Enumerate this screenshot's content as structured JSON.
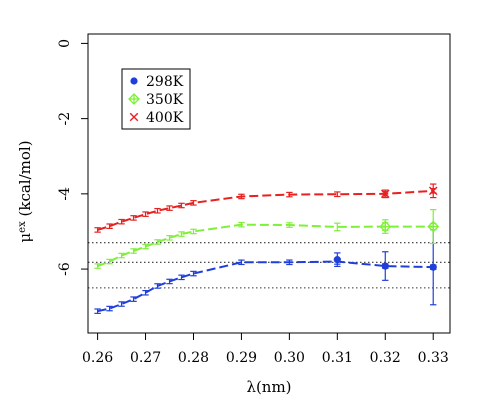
{
  "chart_data": {
    "type": "line",
    "xlabel": "λ(nm)",
    "ylabel": {
      "main": "μ",
      "superscript": "ex",
      "unit": " (kcal/mol)"
    },
    "xlim": [
      0.258,
      0.3335
    ],
    "ylim": [
      -7.7,
      0.25
    ],
    "x_ticks": [
      0.26,
      0.27,
      0.28,
      0.29,
      0.3,
      0.31,
      0.32,
      0.33
    ],
    "x_tick_labels": [
      "0.26",
      "0.27",
      "0.28",
      "0.29",
      "0.30",
      "0.31",
      "0.32",
      "0.33"
    ],
    "y_ticks": [
      0,
      -2,
      -4,
      -6
    ],
    "y_tick_labels": [
      "0",
      "-2",
      "-4",
      "-6"
    ],
    "reference_lines": [
      -5.3,
      -5.82,
      -6.5
    ],
    "legend": {
      "position": "top-left"
    },
    "series": [
      {
        "name": "298K",
        "color": "#1f3fdd",
        "marker": "filled-circle",
        "dense": {
          "x": [
            0.26,
            0.2625,
            0.265,
            0.2675,
            0.27,
            0.2725,
            0.275,
            0.2775,
            0.28,
            0.29,
            0.3,
            0.31,
            0.32,
            0.33
          ],
          "y": [
            -7.12,
            -7.05,
            -6.93,
            -6.8,
            -6.63,
            -6.45,
            -6.33,
            -6.22,
            -6.12,
            -5.82,
            -5.82,
            -5.8,
            -5.92,
            -5.95
          ],
          "err": [
            0.04,
            0.04,
            0.04,
            0.04,
            0.04,
            0.04,
            0.04,
            0.04,
            0.04,
            0.05,
            0.06,
            0.07,
            0.05,
            0.05
          ]
        },
        "markers": {
          "x": [
            0.31,
            0.32,
            0.33
          ],
          "y": [
            -5.75,
            -5.92,
            -5.95
          ],
          "err": [
            0.18,
            0.38,
            1.0
          ]
        }
      },
      {
        "name": "350K",
        "color": "#7ef039",
        "marker": "diamond-plus",
        "dense": {
          "x": [
            0.26,
            0.2625,
            0.265,
            0.2675,
            0.27,
            0.2725,
            0.275,
            0.2775,
            0.28,
            0.29,
            0.3,
            0.31,
            0.32,
            0.33
          ],
          "y": [
            -5.92,
            -5.8,
            -5.64,
            -5.52,
            -5.4,
            -5.28,
            -5.17,
            -5.07,
            -5.0,
            -4.82,
            -4.83,
            -4.88,
            -4.87,
            -4.87
          ],
          "err": [
            0.04,
            0.04,
            0.04,
            0.04,
            0.04,
            0.04,
            0.04,
            0.04,
            0.04,
            0.05,
            0.06,
            0.1,
            0.1,
            0.08
          ]
        },
        "markers": {
          "x": [
            0.32,
            0.33
          ],
          "y": [
            -4.87,
            -4.87
          ],
          "err": [
            0.18,
            0.45
          ]
        }
      },
      {
        "name": "400K",
        "color": "#e82020",
        "marker": "cross",
        "dense": {
          "x": [
            0.26,
            0.2625,
            0.265,
            0.2675,
            0.27,
            0.2725,
            0.275,
            0.2775,
            0.28,
            0.29,
            0.3,
            0.31,
            0.32,
            0.33
          ],
          "y": [
            -4.96,
            -4.86,
            -4.74,
            -4.64,
            -4.54,
            -4.45,
            -4.38,
            -4.31,
            -4.24,
            -4.07,
            -4.02,
            -4.01,
            -4.0,
            -3.92
          ],
          "err": [
            0.04,
            0.04,
            0.04,
            0.04,
            0.04,
            0.04,
            0.04,
            0.04,
            0.04,
            0.05,
            0.05,
            0.06,
            0.05,
            0.05
          ]
        },
        "markers": {
          "x": [
            0.32,
            0.33
          ],
          "y": [
            -4.0,
            -3.92
          ],
          "err": [
            0.1,
            0.18
          ]
        }
      }
    ]
  }
}
